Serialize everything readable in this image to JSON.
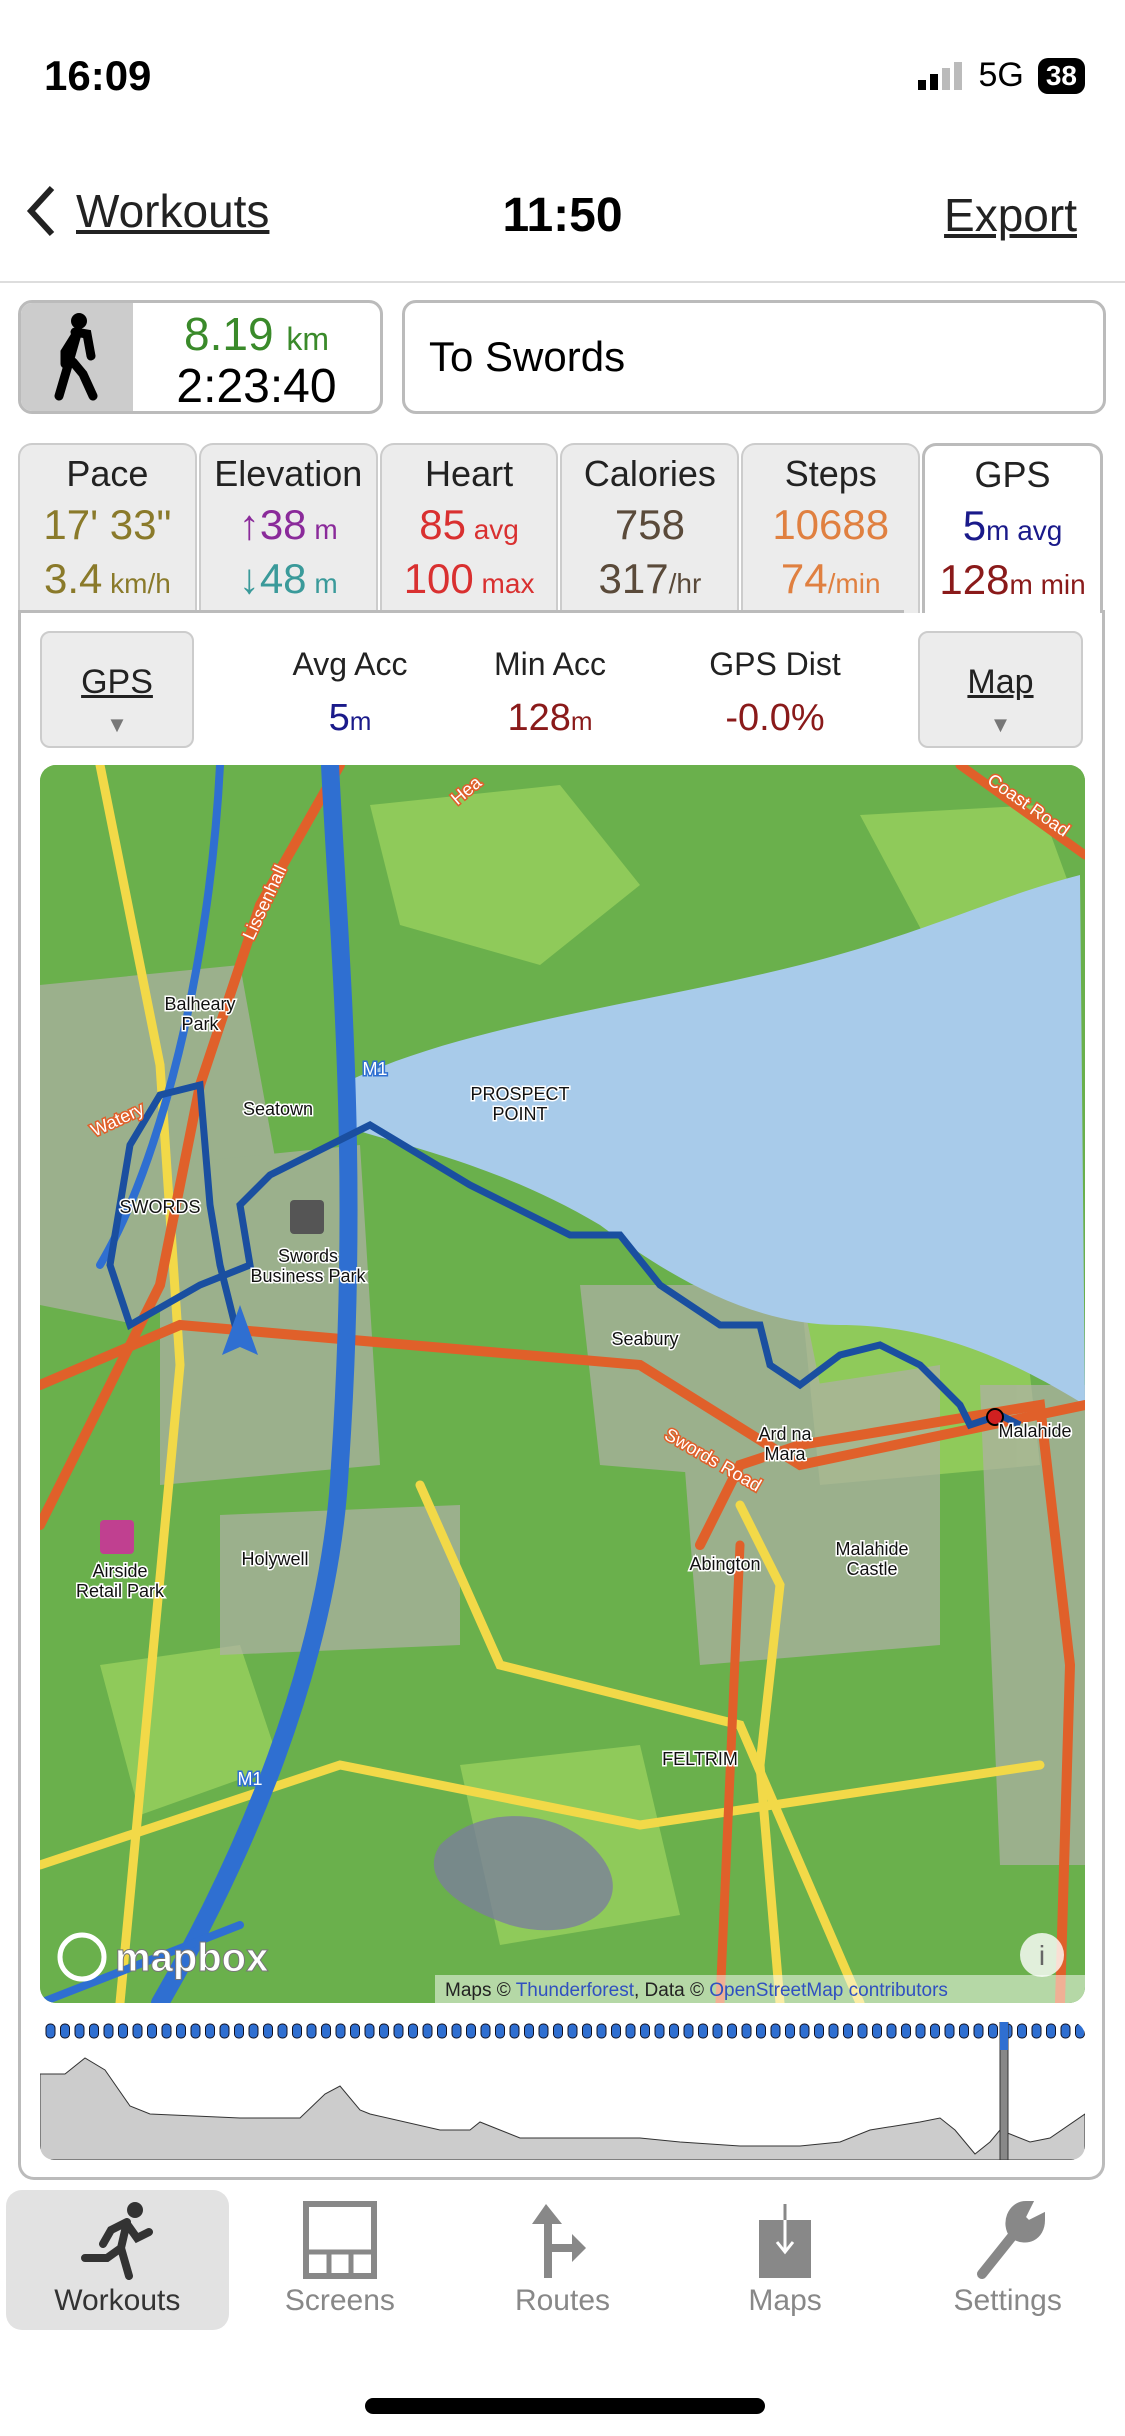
{
  "status": {
    "time": "16:09",
    "network": "5G",
    "battery": "38"
  },
  "nav": {
    "back_label": "Workouts",
    "title": "11:50",
    "export_label": "Export"
  },
  "summary": {
    "distance": "8.19",
    "distance_unit": "km",
    "duration": "2:23:40",
    "activity_icon": "walking-icon",
    "name": "To Swords"
  },
  "tabs": [
    {
      "label": "Pace",
      "v1": "17' 33\"",
      "v1_unit": "",
      "v2": "3.4",
      "v2_unit": " km/h",
      "c1": "#8a7a2a",
      "c2": "#8a7a2a"
    },
    {
      "label": "Elevation",
      "v1": "↑38",
      "v1_unit": " m",
      "v2": "↓48",
      "v2_unit": " m",
      "c1": "#8a2a9a",
      "c2": "#3a9a9a"
    },
    {
      "label": "Heart",
      "v1": "85",
      "v1_unit": " avg",
      "v2": "100",
      "v2_unit": " max",
      "c1": "#d93030",
      "c2": "#d93030"
    },
    {
      "label": "Calories",
      "v1": "758",
      "v1_unit": "",
      "v2": "317",
      "v2_unit": "/hr",
      "c1": "#5a4a3a",
      "c2": "#5a4a3a"
    },
    {
      "label": "Steps",
      "v1": "10688",
      "v1_unit": "",
      "v2": "74",
      "v2_unit": "/min",
      "c1": "#e08040",
      "c2": "#e08040"
    },
    {
      "label": "GPS",
      "v1": "5",
      "v1_unit": "m avg",
      "v2": "128",
      "v2_unit": "m min",
      "c1": "#1a1a8a",
      "c2": "#8a1a1a"
    }
  ],
  "panel": {
    "left_button": "GPS",
    "right_button": "Map",
    "stats": [
      {
        "label": "Avg Acc",
        "value": "5",
        "unit": "m",
        "color": "#1a1a8a"
      },
      {
        "label": "Min Acc",
        "value": "128",
        "unit": "m",
        "color": "#8a1a1a"
      },
      {
        "label": "GPS Dist",
        "value": "-0.0%",
        "unit": "",
        "color": "#8a1a1a"
      }
    ]
  },
  "map": {
    "labels": {
      "balheary": "Balheary",
      "park": "Park",
      "seatown": "Seatown",
      "swords": "SWORDS",
      "watery": "Watery",
      "lissenhall": "Lissenhall",
      "sbp1": "Swords",
      "sbp2": "Business Park",
      "prospect1": "PROSPECT",
      "prospect2": "POINT",
      "seabury": "Seabury",
      "ardna1": "Ard na",
      "ardna2": "Mara",
      "swordsroad": "Swords Road",
      "malahide": "Malahide",
      "abington": "Abington",
      "castle1": "Malahide",
      "castle2": "Castle",
      "holywell": "Holywell",
      "airside1": "Airside",
      "airside2": "Retail Park",
      "feltrim": "FELTRIM",
      "m1": "M1",
      "coast": "Coast Road",
      "heat": "Hea"
    },
    "logo": "mapbox",
    "attribution": {
      "maps": "Maps © ",
      "thunderforest": "Thunderforest",
      "data": ", Data © ",
      "osm": "OpenStreetMap contributors"
    },
    "colors": {
      "land": "#6ab04c",
      "water": "#a8cbea",
      "motorway": "#2f6fd1",
      "primary": "#e0602a",
      "secondary": "#f2d948",
      "route": "#1a4fa0"
    }
  },
  "tabbar": [
    {
      "label": "Workouts",
      "icon": "running-icon",
      "active": true
    },
    {
      "label": "Screens",
      "icon": "screens-icon",
      "active": false
    },
    {
      "label": "Routes",
      "icon": "routes-icon",
      "active": false
    },
    {
      "label": "Maps",
      "icon": "maps-download-icon",
      "active": false
    },
    {
      "label": "Settings",
      "icon": "wrench-icon",
      "active": false
    }
  ]
}
